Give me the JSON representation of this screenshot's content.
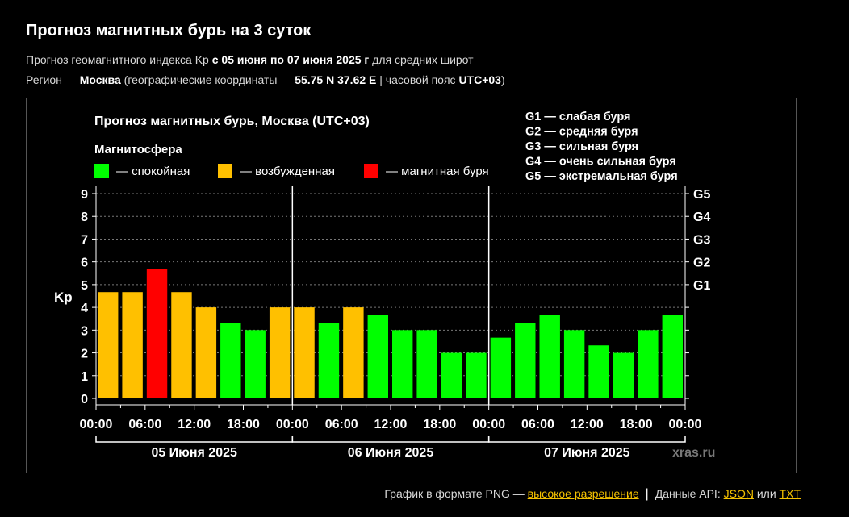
{
  "page": {
    "title": "Прогноз магнитных бурь на 3 суток",
    "sub1": {
      "t1": "Прогноз геомагнитного индекса Kp ",
      "b1": "с 05 июня по 07 июня 2025 г",
      "t2": " для средних широт"
    },
    "sub2": {
      "t1": "Регион — ",
      "b1": "Москва",
      "t2": " (географические координаты — ",
      "b2": "55.75 N 37.62 E",
      "t3": " | часовой пояс ",
      "b3": "UTC+03",
      "t4": ")"
    },
    "footer": {
      "png_text": "График в формате PNG — ",
      "png_link": "высокое разрешение",
      "sep": "|",
      "api_text": "Данные API: ",
      "json_link": "JSON",
      "or": " или ",
      "txt_link": "TXT"
    },
    "watermark": "xras.ru"
  },
  "colors": {
    "background": "#000000",
    "calm": "#00ff00",
    "excited": "#ffc000",
    "storm": "#ff0000",
    "link": "#f5c200"
  },
  "chart_data": {
    "type": "bar",
    "title": "Прогноз магнитных бурь, Москва (UTC+03)",
    "legend_title": "Магнитосфера",
    "legend": [
      {
        "key": "calm",
        "label": "— спокойная"
      },
      {
        "key": "excited",
        "label": "— возбужденная"
      },
      {
        "key": "storm",
        "label": "— магнитная буря"
      }
    ],
    "storm_levels": [
      "G1 — слабая буря",
      "G2 — средняя буря",
      "G3 — сильная буря",
      "G4 — очень сильная буря",
      "G5 — экстремальная буря"
    ],
    "ylabel": "Kp",
    "ylim": [
      0,
      9
    ],
    "y_ticks": [
      "0",
      "1",
      "2",
      "3",
      "4",
      "5",
      "6",
      "7",
      "8",
      "9"
    ],
    "right_ticks": [
      {
        "value": 5,
        "label": "G1"
      },
      {
        "value": 6,
        "label": "G2"
      },
      {
        "value": 7,
        "label": "G3"
      },
      {
        "value": 8,
        "label": "G4"
      },
      {
        "value": 9,
        "label": "G5"
      }
    ],
    "x_ticks": [
      "00:00",
      "06:00",
      "12:00",
      "18:00",
      "00:00",
      "06:00",
      "12:00",
      "18:00",
      "00:00",
      "06:00",
      "12:00",
      "18:00",
      "00:00"
    ],
    "days": [
      "05 Июня 2025",
      "06 Июня 2025",
      "07 Июня 2025"
    ],
    "values": [
      4.67,
      4.67,
      5.67,
      4.67,
      4.0,
      3.33,
      3.0,
      4.0,
      4.0,
      3.33,
      4.0,
      3.67,
      3.0,
      3.0,
      2.0,
      2.0,
      2.67,
      3.33,
      3.67,
      3.0,
      2.33,
      2.0,
      3.0,
      3.67
    ],
    "levels": [
      "excited",
      "excited",
      "storm",
      "excited",
      "excited",
      "calm",
      "calm",
      "excited",
      "excited",
      "calm",
      "excited",
      "calm",
      "calm",
      "calm",
      "calm",
      "calm",
      "calm",
      "calm",
      "calm",
      "calm",
      "calm",
      "calm",
      "calm",
      "calm"
    ],
    "grid": true
  }
}
